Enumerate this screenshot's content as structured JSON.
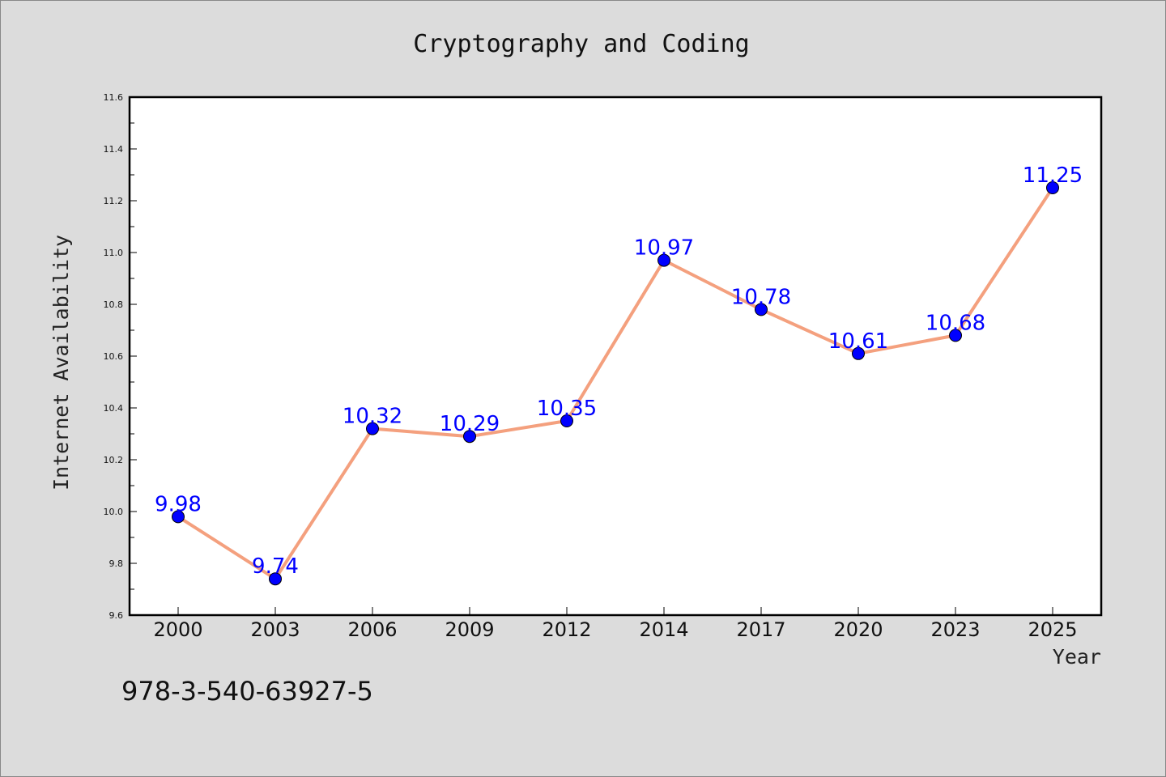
{
  "chart_data": {
    "type": "line",
    "title": "Cryptography and Coding",
    "xlabel": "Year",
    "ylabel": "Internet Availability",
    "categories": [
      "2000",
      "2003",
      "2006",
      "2009",
      "2012",
      "2014",
      "2017",
      "2020",
      "2023",
      "2025"
    ],
    "series": [
      {
        "values": [
          9.98,
          9.74,
          10.32,
          10.29,
          10.35,
          10.97,
          10.78,
          10.61,
          10.68,
          11.25
        ],
        "labels": [
          "9.98",
          "9.74",
          "10.32",
          "10.29",
          "10.35",
          "10.97",
          "10.78",
          "10.61",
          "10.68",
          "11.25"
        ],
        "line_color": "#f4a07e",
        "marker_color": "#0000ff"
      }
    ],
    "ylim": [
      9.6,
      11.6
    ],
    "yticks": [
      "9.6",
      "9.8",
      "10.0",
      "10.2",
      "10.4",
      "10.6",
      "10.8",
      "11.0",
      "11.2",
      "11.4",
      "11.6"
    ],
    "grid": false,
    "legend": "none",
    "background_color": "#dcdcdc",
    "plot_background": "#ffffff"
  },
  "footer_text": "978-3-540-63927-5"
}
